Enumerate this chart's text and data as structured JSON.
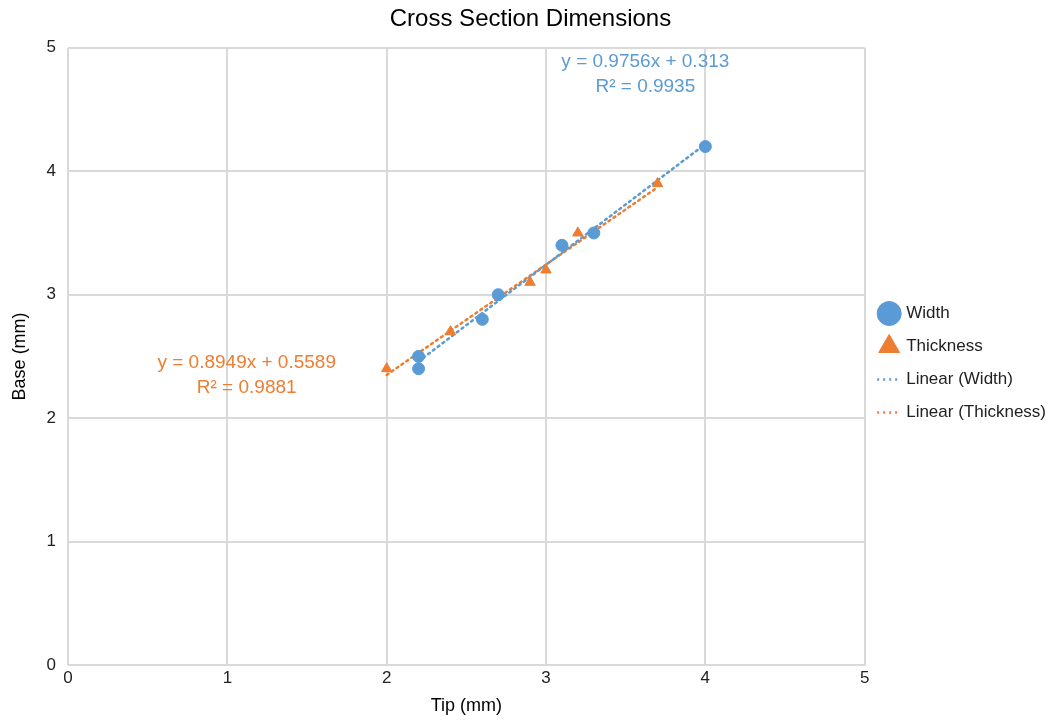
{
  "chart_data": {
    "type": "scatter",
    "title": "Cross Section Dimensions",
    "xlabel": "Tip (mm)",
    "ylabel": "Base (mm)",
    "xlim": [
      0,
      5
    ],
    "xticks": [
      0,
      1,
      2,
      3,
      4,
      5
    ],
    "ylim": [
      0,
      5
    ],
    "yticks": [
      0,
      1,
      2,
      3,
      4,
      5
    ],
    "grid": true,
    "legend": "right",
    "series": [
      {
        "name": "Width",
        "color": "#5b9bd5",
        "marker": "circle",
        "x": [
          2.2,
          2.2,
          2.6,
          2.7,
          3.1,
          3.3,
          4.0
        ],
        "values": [
          2.5,
          2.4,
          2.8,
          3.0,
          3.4,
          3.5,
          4.2
        ]
      },
      {
        "name": "Thickness",
        "color": "#ed7d31",
        "marker": "triangle",
        "x": [
          2.0,
          2.4,
          2.9,
          3.0,
          3.2,
          3.7
        ],
        "values": [
          2.4,
          2.7,
          3.1,
          3.2,
          3.5,
          3.9
        ]
      },
      {
        "name": "Linear (Width)",
        "type": "line",
        "color": "#5b9bd5",
        "line_style": "dotted",
        "marker": "none",
        "x": [
          2.2,
          4.0
        ],
        "values": [
          2.46,
          4.22
        ]
      },
      {
        "name": "Linear (Thickness)",
        "type": "line",
        "color": "#ed7d31",
        "line_style": "dotted",
        "marker": "none",
        "x": [
          2.0,
          3.7
        ],
        "values": [
          2.35,
          3.87
        ]
      }
    ],
    "annotations": [
      "y = 0.9756x + 0.313\nR² = 0.9935",
      "y = 0.8949x + 0.5589\nR² = 0.9881"
    ]
  }
}
